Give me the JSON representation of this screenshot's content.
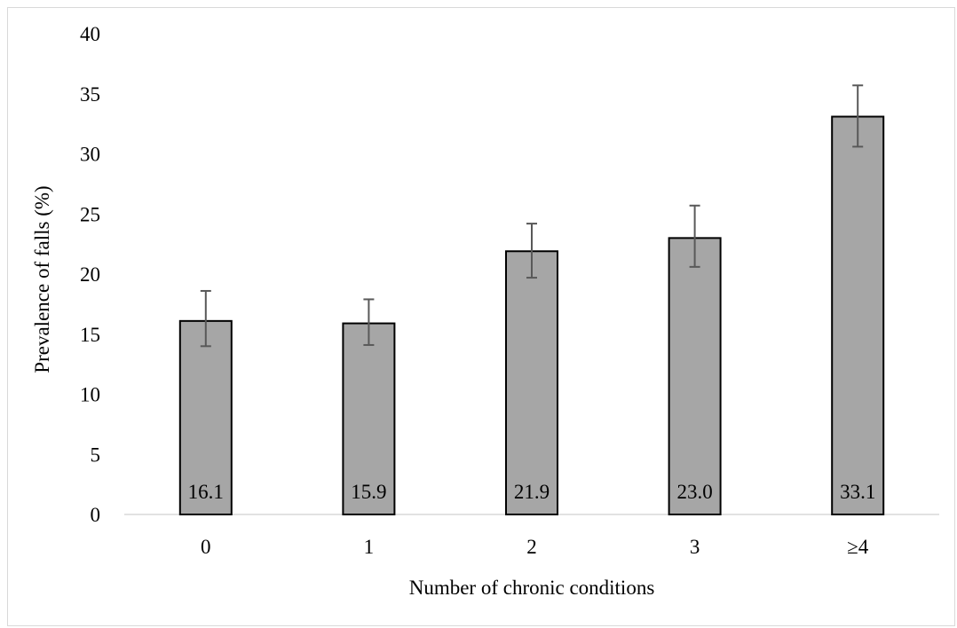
{
  "chart_data": {
    "type": "bar",
    "categories": [
      "0",
      "1",
      "2",
      "3",
      "≥4"
    ],
    "values": [
      16.1,
      15.9,
      21.9,
      23.0,
      33.1
    ],
    "value_labels": [
      "16.1",
      "15.9",
      "21.9",
      "23.0",
      "33.1"
    ],
    "error_bars": [
      {
        "low": 14.0,
        "high": 18.6
      },
      {
        "low": 14.1,
        "high": 17.9
      },
      {
        "low": 19.7,
        "high": 24.2
      },
      {
        "low": 20.6,
        "high": 25.7
      },
      {
        "low": 30.6,
        "high": 35.7
      }
    ],
    "xlabel": "Number of chronic conditions",
    "ylabel": "Prevalence of falls (%)",
    "ylim": [
      0,
      40
    ],
    "yticks": [
      0,
      5,
      10,
      15,
      20,
      25,
      30,
      35,
      40
    ],
    "grid": false,
    "legend": "none",
    "bar_color": "#a6a6a6",
    "bar_edge_color": "#000000",
    "error_bar_color": "#595959"
  }
}
